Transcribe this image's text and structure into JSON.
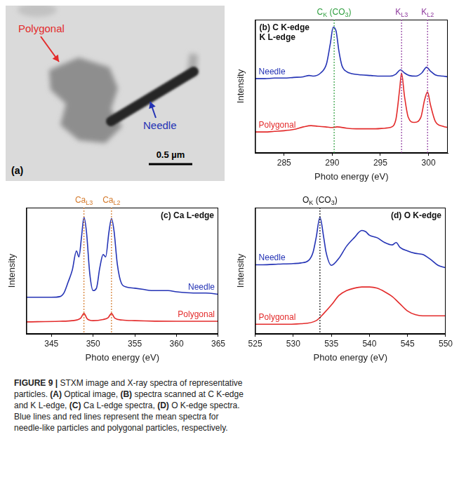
{
  "image_panel": {
    "letter": "(a)",
    "labels": [
      {
        "text": "Polygonal",
        "color": "#e32b2b"
      },
      {
        "text": "Needle",
        "color": "#2433b5"
      }
    ],
    "scale_bar": "0.5 µm"
  },
  "chart_data": [
    {
      "type": "line",
      "title": [
        "(b) C K-edge",
        "K L-edge"
      ],
      "x_label": "Photo energy (eV)",
      "y_label": "Intensity",
      "xlim": [
        282,
        302
      ],
      "xticks": [
        285,
        290,
        295,
        300
      ],
      "ylim": [
        0,
        10.5
      ],
      "tick_labels": "x",
      "grid": false,
      "series": [
        {
          "name": "Needle",
          "color": "#2433b5",
          "line_style": "solid",
          "x": [
            282,
            283,
            284,
            285,
            286,
            287,
            287.6,
            288,
            288.8,
            289.4,
            289.8,
            290.1,
            290.4,
            290.7,
            291,
            291.5,
            292,
            293,
            294,
            295,
            296,
            296.6,
            297.1,
            297.5,
            298,
            298.7,
            299.3,
            299.8,
            300.2,
            300.7,
            301.5,
            302
          ],
          "values": [
            5.85,
            5.85,
            5.9,
            5.9,
            5.95,
            6.0,
            6.1,
            6.05,
            6.3,
            7.0,
            8.6,
            9.9,
            9.6,
            8.0,
            6.9,
            6.4,
            6.25,
            6.15,
            6.1,
            6.05,
            6.05,
            6.2,
            6.55,
            6.3,
            6.1,
            6.05,
            6.3,
            6.75,
            6.45,
            6.15,
            6.05,
            6.0
          ]
        },
        {
          "name": "Polygonal",
          "color": "#e32b2b",
          "line_style": "solid",
          "x": [
            282,
            283,
            284,
            285,
            286,
            287,
            287.8,
            288.5,
            289.3,
            290,
            290.5,
            291.5,
            292.5,
            293.5,
            294.5,
            295.5,
            296,
            296.6,
            297,
            297.2,
            297.5,
            297.9,
            298.5,
            299.2,
            299.6,
            299.9,
            300.2,
            300.7,
            301.5,
            302
          ],
          "values": [
            1.65,
            1.65,
            1.7,
            1.75,
            1.85,
            2.05,
            2.15,
            2.1,
            2.05,
            2.0,
            2.05,
            1.95,
            1.9,
            1.9,
            1.9,
            1.95,
            2.0,
            2.6,
            5.0,
            6.3,
            4.5,
            2.8,
            2.4,
            2.8,
            4.2,
            4.8,
            3.8,
            2.5,
            2.1,
            2.0
          ]
        }
      ],
      "annotations": [
        {
          "x": 290.2,
          "color": "#2e9e3e",
          "label_parts": [
            "C",
            "K",
            " (CO",
            "3",
            ")"
          ]
        },
        {
          "x": 297.2,
          "color": "#8e3a9d",
          "label_parts": [
            "K",
            "L3"
          ]
        },
        {
          "x": 299.9,
          "color": "#8e3a9d",
          "label_parts": [
            "K",
            "L2"
          ]
        }
      ]
    },
    {
      "type": "line",
      "title": [
        "(c) Ca L-edge"
      ],
      "x_label": "Photo energy (eV)",
      "y_label": "Intensity",
      "xlim": [
        342,
        365
      ],
      "xticks": [
        345,
        350,
        355,
        360,
        365
      ],
      "ylim": [
        0,
        10.5
      ],
      "tick_labels": "x",
      "grid": false,
      "series": [
        {
          "name": "Needle",
          "color": "#2433b5",
          "line_style": "solid",
          "x": [
            342,
            345,
            346,
            346.5,
            347,
            347.5,
            348,
            348.3,
            348.6,
            348.9,
            349.2,
            349.6,
            350,
            350.4,
            350.8,
            351.2,
            351.5,
            351.9,
            352.2,
            352.5,
            352.9,
            353.4,
            354,
            355,
            356,
            357,
            358,
            359,
            360,
            362,
            363.5,
            365
          ],
          "values": [
            3.05,
            3.05,
            3.1,
            3.4,
            4.3,
            5.3,
            6.9,
            6.4,
            8.0,
            9.7,
            8.5,
            5.0,
            3.6,
            3.8,
            5.5,
            6.6,
            6.4,
            8.5,
            9.6,
            8.6,
            5.8,
            4.2,
            3.9,
            3.8,
            3.7,
            3.6,
            3.6,
            3.6,
            3.5,
            3.4,
            3.4,
            3.3
          ]
        },
        {
          "name": "Polygonal",
          "color": "#e32b2b",
          "line_style": "solid",
          "x": [
            342,
            346,
            347.5,
            348.5,
            348.9,
            349.3,
            350,
            351.2,
            351.8,
            352.2,
            352.6,
            353.5,
            355,
            360,
            365
          ],
          "values": [
            1.0,
            1.05,
            1.1,
            1.3,
            1.7,
            1.25,
            1.1,
            1.2,
            1.35,
            1.7,
            1.3,
            1.15,
            1.1,
            1.05,
            1.05
          ]
        }
      ],
      "annotations": [
        {
          "x": 348.9,
          "color": "#d4792a",
          "label_parts": [
            "Ca",
            "L3"
          ]
        },
        {
          "x": 352.2,
          "color": "#d4792a",
          "label_parts": [
            "Ca",
            "L2"
          ]
        }
      ]
    },
    {
      "type": "line",
      "title": [
        "(d) O K-edge"
      ],
      "x_label": "Photo energy (eV)",
      "y_label": "Intensity",
      "xlim": [
        525,
        550
      ],
      "xticks": [
        525,
        530,
        535,
        540,
        545,
        550
      ],
      "ylim": [
        0,
        10.5
      ],
      "tick_labels": "x",
      "grid": false,
      "series": [
        {
          "name": "Needle",
          "color": "#2433b5",
          "line_style": "solid",
          "x": [
            525,
            526,
            528,
            530,
            531,
            532,
            532.6,
            533,
            533.5,
            534,
            534.3,
            535,
            536,
            537,
            538,
            539,
            539.5,
            540,
            541,
            542,
            543,
            543.5,
            544,
            545,
            546,
            547,
            548,
            549,
            550
          ],
          "values": [
            5.75,
            5.75,
            5.8,
            5.85,
            5.9,
            6.1,
            6.8,
            8.0,
            9.7,
            8.0,
            6.8,
            5.7,
            6.3,
            7.3,
            8.0,
            8.6,
            8.5,
            8.2,
            8.0,
            7.6,
            7.4,
            7.6,
            7.2,
            6.9,
            6.7,
            6.6,
            6.2,
            5.7,
            5.5
          ]
        },
        {
          "name": "Polygonal",
          "color": "#e32b2b",
          "line_style": "solid",
          "x": [
            525,
            528,
            531,
            533,
            534,
            535,
            536,
            537,
            538,
            539,
            540,
            541,
            542,
            543,
            544,
            545,
            546,
            547,
            548,
            550
          ],
          "values": [
            0.8,
            0.8,
            0.85,
            1.1,
            1.7,
            2.4,
            3.2,
            3.6,
            3.8,
            3.9,
            3.9,
            3.8,
            3.5,
            3.1,
            2.5,
            1.9,
            1.6,
            1.5,
            1.5,
            1.5
          ]
        }
      ],
      "annotations": [
        {
          "x": 533.5,
          "color": "#111111",
          "label_parts": [
            "O",
            "K",
            " (CO",
            "3",
            ")"
          ]
        }
      ]
    }
  ],
  "caption": [
    {
      "text": "FIGURE 9 |",
      "bold": true
    },
    {
      "text": " STXM image and X-ray spectra of representative particles. "
    },
    {
      "text": "(A)",
      "bold": true
    },
    {
      "text": " Optical image, "
    },
    {
      "text": "(B)",
      "bold": true
    },
    {
      "text": " spectra scanned at C K-edge and K L-edge, "
    },
    {
      "text": "(C)",
      "bold": true
    },
    {
      "text": " Ca L-edge spectra, "
    },
    {
      "text": "(D)",
      "bold": true
    },
    {
      "text": " O K-edge spectra. Blue lines and red lines represent the mean spectra for needle-like particles and polygonal particles, respectively."
    }
  ]
}
